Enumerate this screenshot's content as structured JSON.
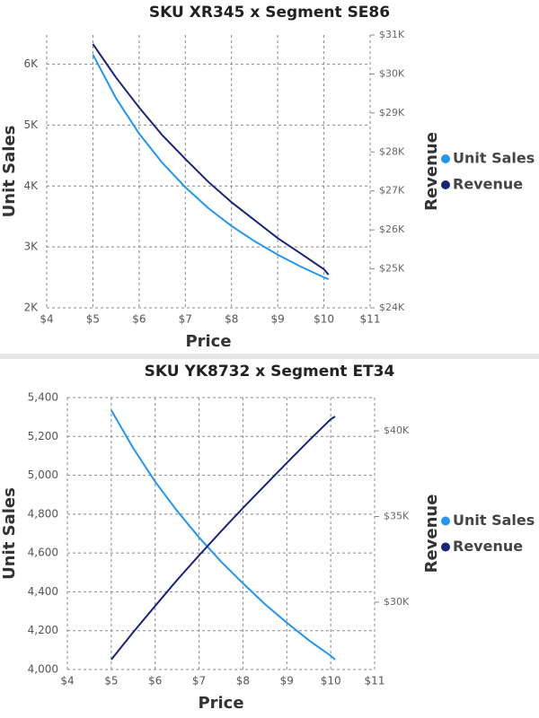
{
  "chart_data": [
    {
      "type": "line",
      "title": "SKU XR345 x Segment SE86",
      "x_label": "Price",
      "y_label": "Unit Sales",
      "y2_label": "Revenue",
      "x": [
        5,
        5.5,
        6,
        6.5,
        7,
        7.5,
        8,
        8.5,
        9,
        9.5,
        10,
        10.1
      ],
      "series": [
        {
          "name": "Unit Sales",
          "color": "#2196f3",
          "values": [
            6160,
            5442,
            4861,
            4381,
            3980,
            3636,
            3344,
            3094,
            2873,
            2676,
            2501,
            2470
          ]
        },
        {
          "name": "Revenue",
          "color": "#1a237e",
          "axis": "y2",
          "values": [
            30770,
            29910,
            29140,
            28430,
            27820,
            27230,
            26710,
            26250,
            25790,
            25390,
            24990,
            24850
          ]
        }
      ],
      "xlim": [
        4,
        11
      ],
      "xticks": [
        {
          "value": 4,
          "label": "$4"
        },
        {
          "value": 5,
          "label": "$5"
        },
        {
          "value": 6,
          "label": "$6"
        },
        {
          "value": 7,
          "label": "$7"
        },
        {
          "value": 8,
          "label": "$8"
        },
        {
          "value": 9,
          "label": "$9"
        },
        {
          "value": 10,
          "label": "$10"
        },
        {
          "value": 11,
          "label": "$11"
        }
      ],
      "ylim": [
        2000,
        6480
      ],
      "yticks": [
        {
          "value": 2000,
          "label": "2K"
        },
        {
          "value": 3000,
          "label": "3K"
        },
        {
          "value": 4000,
          "label": "4K"
        },
        {
          "value": 5000,
          "label": "5K"
        },
        {
          "value": 6000,
          "label": "6K"
        }
      ],
      "y2lim": [
        24000,
        31000
      ],
      "y2ticks": [
        {
          "value": 24000,
          "label": "$24K"
        },
        {
          "value": 25000,
          "label": "$25K"
        },
        {
          "value": 26000,
          "label": "$26K"
        },
        {
          "value": 27000,
          "label": "$27K"
        },
        {
          "value": 28000,
          "label": "$28K"
        },
        {
          "value": 29000,
          "label": "$29K"
        },
        {
          "value": 30000,
          "label": "$30K"
        },
        {
          "value": 31000,
          "label": "$31K"
        }
      ],
      "grid": true,
      "legend": "right"
    },
    {
      "type": "line",
      "title": "SKU YK8732 x Segment ET34",
      "x_label": "Price",
      "y_label": "Unit Sales",
      "y2_label": "Revenue",
      "x": [
        5,
        5.5,
        6,
        6.5,
        7,
        7.5,
        8,
        8.5,
        9,
        9.5,
        10,
        10.1
      ],
      "series": [
        {
          "name": "Unit Sales",
          "color": "#2196f3",
          "values": [
            5335,
            5140,
            4967,
            4817,
            4680,
            4556,
            4444,
            4337,
            4241,
            4151,
            4071,
            4051
          ]
        },
        {
          "name": "Revenue",
          "color": "#1a237e",
          "axis": "y2",
          "values": [
            26650,
            28250,
            29780,
            31290,
            32730,
            34130,
            35490,
            36820,
            38130,
            39420,
            40670,
            40840
          ]
        }
      ],
      "xlim": [
        4,
        11
      ],
      "xticks": [
        {
          "value": 4,
          "label": "$4"
        },
        {
          "value": 5,
          "label": "$5"
        },
        {
          "value": 6,
          "label": "$6"
        },
        {
          "value": 7,
          "label": "$7"
        },
        {
          "value": 8,
          "label": "$8"
        },
        {
          "value": 9,
          "label": "$9"
        },
        {
          "value": 10,
          "label": "$10"
        },
        {
          "value": 11,
          "label": "$11"
        }
      ],
      "ylim": [
        4000,
        5400
      ],
      "yticks": [
        {
          "value": 4000,
          "label": "4,000"
        },
        {
          "value": 4200,
          "label": "4,200"
        },
        {
          "value": 4400,
          "label": "4,400"
        },
        {
          "value": 4600,
          "label": "4,600"
        },
        {
          "value": 4800,
          "label": "4,800"
        },
        {
          "value": 5000,
          "label": "5,000"
        },
        {
          "value": 5200,
          "label": "5,200"
        },
        {
          "value": 5400,
          "label": "5,400"
        }
      ],
      "y2lim": [
        26070,
        41940
      ],
      "y2ticks": [
        {
          "value": 30000,
          "label": "$30K"
        },
        {
          "value": 35000,
          "label": "$35K"
        },
        {
          "value": 40000,
          "label": "$40K"
        }
      ],
      "grid": true,
      "legend": "right"
    }
  ]
}
